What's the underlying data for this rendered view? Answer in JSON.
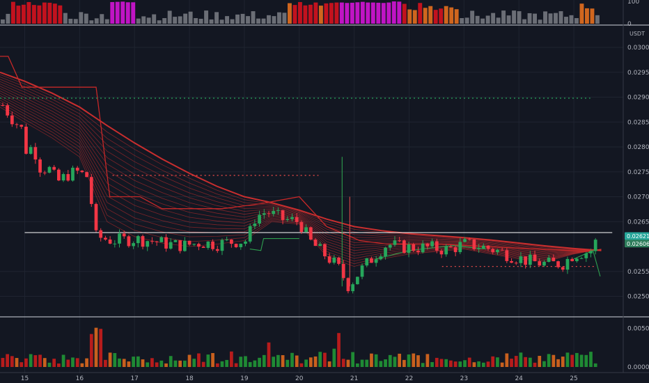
{
  "chart_data": {
    "type": "candlestick",
    "quote_currency": "USDT",
    "x_axis": {
      "ticks": [
        "15",
        "16",
        "17",
        "18",
        "19",
        "20",
        "21",
        "22",
        "23",
        "24",
        "25"
      ],
      "range": [
        14.55,
        25.9
      ]
    },
    "price_axis": {
      "ticks": [
        "0.03000",
        "0.02950",
        "0.02900",
        "0.02850",
        "0.02800",
        "0.02750",
        "0.02700",
        "0.02650",
        "0.02550",
        "0.02500"
      ],
      "ylim": [
        0.02463,
        0.03042
      ]
    },
    "last_price_badges": [
      "0.02621",
      "0.02606"
    ],
    "reference_lines": [
      {
        "type": "horizontal",
        "value": 0.02628,
        "color": "#ffffff",
        "x_from": 15.0,
        "x_to": 25.7
      },
      {
        "type": "horizontal",
        "value": 0.02898,
        "color": "#26a65b",
        "dashed": true,
        "x_from": 14.55,
        "x_to": 25.3
      },
      {
        "type": "horizontal",
        "value": 0.02743,
        "color": "#e04848",
        "dashed": true,
        "x_from": 16.6,
        "x_to": 20.35
      },
      {
        "type": "horizontal",
        "value": 0.0256,
        "color": "#e04848",
        "dashed": true,
        "x_from": 22.6,
        "x_to": 25.4
      }
    ],
    "ma_ribbon": {
      "color": "#d32f2f",
      "outer": [
        [
          14.55,
          0.0295
        ],
        [
          15.0,
          0.02932
        ],
        [
          15.5,
          0.02908
        ],
        [
          16.0,
          0.0288
        ],
        [
          16.5,
          0.02843
        ],
        [
          17.0,
          0.02808
        ],
        [
          17.5,
          0.02776
        ],
        [
          18.0,
          0.02747
        ],
        [
          18.5,
          0.02721
        ],
        [
          19.0,
          0.027
        ],
        [
          19.5,
          0.02688
        ],
        [
          20.0,
          0.02673
        ],
        [
          20.5,
          0.02655
        ],
        [
          21.0,
          0.0264
        ],
        [
          21.5,
          0.02632
        ],
        [
          22.0,
          0.02626
        ],
        [
          22.5,
          0.02622
        ],
        [
          23.0,
          0.02618
        ],
        [
          23.5,
          0.02613
        ],
        [
          24.0,
          0.02607
        ],
        [
          24.5,
          0.02601
        ],
        [
          25.0,
          0.02596
        ],
        [
          25.5,
          0.02592
        ]
      ],
      "inner": [
        [
          14.55,
          0.0288
        ],
        [
          15.0,
          0.0285
        ],
        [
          15.5,
          0.02818
        ],
        [
          16.0,
          0.0278
        ],
        [
          16.5,
          0.0265
        ],
        [
          17.0,
          0.0262
        ],
        [
          17.5,
          0.02607
        ],
        [
          18.0,
          0.026
        ],
        [
          18.5,
          0.02605
        ],
        [
          19.0,
          0.02612
        ],
        [
          19.5,
          0.0265
        ],
        [
          20.0,
          0.02645
        ],
        [
          20.5,
          0.0258
        ],
        [
          21.0,
          0.0256
        ],
        [
          21.5,
          0.02575
        ],
        [
          22.0,
          0.02585
        ],
        [
          22.5,
          0.0259
        ],
        [
          23.0,
          0.02595
        ],
        [
          23.5,
          0.02585
        ],
        [
          24.0,
          0.02575
        ],
        [
          24.5,
          0.0257
        ],
        [
          25.0,
          0.02585
        ],
        [
          25.5,
          0.02595
        ]
      ],
      "stepped": [
        [
          14.55,
          0.02982
        ],
        [
          14.7,
          0.02982
        ],
        [
          14.95,
          0.0292
        ],
        [
          16.3,
          0.0292
        ],
        [
          16.55,
          0.027
        ],
        [
          17.1,
          0.027
        ],
        [
          17.5,
          0.02676
        ],
        [
          18.6,
          0.02676
        ],
        [
          19.3,
          0.02686
        ],
        [
          20.0,
          0.027
        ],
        [
          20.5,
          0.0264
        ],
        [
          21.1,
          0.02612
        ],
        [
          21.6,
          0.02605
        ],
        [
          22.6,
          0.02605
        ],
        [
          23.4,
          0.026
        ],
        [
          25.3,
          0.0259
        ]
      ]
    },
    "candles": [],
    "volume_axis": {
      "ticks": [
        "0.00500",
        "0.00000"
      ]
    },
    "volume_bars": [],
    "oscillator": {
      "type": "bar",
      "ticks": [
        "100",
        "0"
      ],
      "values": []
    },
    "trend_segments": []
  }
}
